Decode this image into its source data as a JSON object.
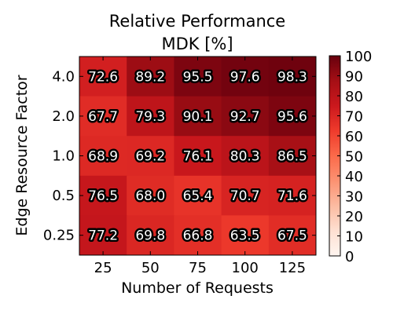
{
  "chart_data": {
    "type": "heatmap",
    "title": "Relative Performance",
    "subtitle": "MDK [%]",
    "xlabel": "Number of Requests",
    "ylabel": "Edge Resource Factor",
    "x_categories": [
      "25",
      "50",
      "75",
      "100",
      "125"
    ],
    "y_categories": [
      "4.0",
      "2.0",
      "1.0",
      "0.5",
      "0.25"
    ],
    "values": [
      [
        72.6,
        89.2,
        95.5,
        97.6,
        98.3
      ],
      [
        67.7,
        79.3,
        90.1,
        92.7,
        95.6
      ],
      [
        68.9,
        69.2,
        76.1,
        80.3,
        86.5
      ],
      [
        76.5,
        68.0,
        65.4,
        70.7,
        71.6
      ],
      [
        77.2,
        69.8,
        66.8,
        63.5,
        67.5
      ]
    ],
    "value_labels": [
      [
        "72.6",
        "89.2",
        "95.5",
        "97.6",
        "98.3"
      ],
      [
        "67.7",
        "79.3",
        "90.1",
        "92.7",
        "95.6"
      ],
      [
        "68.9",
        "69.2",
        "76.1",
        "80.3",
        "86.5"
      ],
      [
        "76.5",
        "68.0",
        "65.4",
        "70.7",
        "71.6"
      ],
      [
        "77.2",
        "69.8",
        "66.8",
        "63.5",
        "67.5"
      ]
    ],
    "colorbar": {
      "min": 0,
      "max": 100,
      "ticks": [
        "0",
        "10",
        "20",
        "30",
        "40",
        "50",
        "60",
        "70",
        "80",
        "90",
        "100"
      ],
      "colormap": "Reds"
    },
    "grid": false
  }
}
